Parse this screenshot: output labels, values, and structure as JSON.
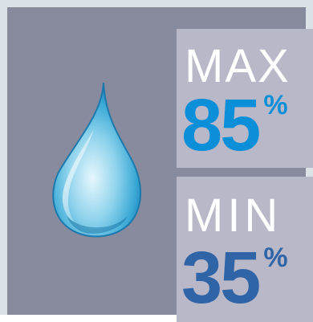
{
  "max": {
    "label": "MAX",
    "value": "85",
    "unit": "%",
    "color": "#0a8fd8"
  },
  "min": {
    "label": "MIN",
    "value": "35",
    "unit": "%",
    "color": "#2f64a6"
  },
  "icon": "water-drop-icon",
  "colors": {
    "background": "#888b9d",
    "frame": "#dbe2e8",
    "card": "#b9b8c8"
  }
}
